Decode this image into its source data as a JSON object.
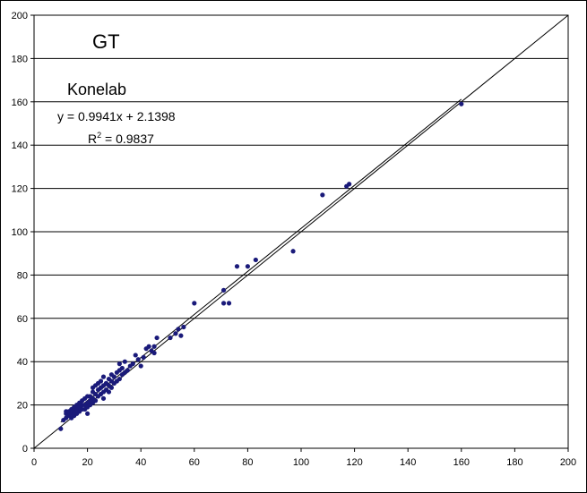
{
  "chart_data": {
    "type": "scatter",
    "title": "GT",
    "subtitle": "Konelab",
    "equation": "y = 0.9941x + 2.1398",
    "r2_label": "R",
    "r2_sup": "2",
    "r2_value": " = 0.9837",
    "xlim": [
      0,
      200
    ],
    "ylim": [
      0,
      200
    ],
    "x_ticks": [
      0,
      20,
      40,
      60,
      80,
      100,
      120,
      140,
      160,
      180,
      200
    ],
    "y_ticks": [
      0,
      20,
      40,
      60,
      80,
      100,
      120,
      140,
      160,
      180,
      200
    ],
    "grid": "horizontal",
    "marker_color": "#1a1a7a",
    "trendline": {
      "slope": 0.9941,
      "intercept": 2.1398,
      "x_range": [
        10,
        160
      ]
    },
    "identity_line": {
      "slope": 1,
      "intercept": 0
    },
    "points": [
      [
        10,
        9
      ],
      [
        11,
        13
      ],
      [
        12,
        14
      ],
      [
        12,
        16
      ],
      [
        12,
        17
      ],
      [
        13,
        15
      ],
      [
        13,
        17
      ],
      [
        14,
        14
      ],
      [
        14,
        16
      ],
      [
        14,
        18
      ],
      [
        15,
        15
      ],
      [
        15,
        17
      ],
      [
        15,
        19
      ],
      [
        16,
        16
      ],
      [
        16,
        18
      ],
      [
        16,
        20
      ],
      [
        17,
        17
      ],
      [
        17,
        19
      ],
      [
        17,
        21
      ],
      [
        18,
        18
      ],
      [
        18,
        20
      ],
      [
        18,
        22
      ],
      [
        19,
        18
      ],
      [
        19,
        20
      ],
      [
        19,
        23
      ],
      [
        20,
        16
      ],
      [
        20,
        19
      ],
      [
        20,
        21
      ],
      [
        20,
        24
      ],
      [
        21,
        20
      ],
      [
        21,
        22
      ],
      [
        21,
        24
      ],
      [
        22,
        21
      ],
      [
        22,
        23
      ],
      [
        22,
        26
      ],
      [
        22,
        28
      ],
      [
        23,
        22
      ],
      [
        23,
        25
      ],
      [
        23,
        29
      ],
      [
        24,
        24
      ],
      [
        24,
        27
      ],
      [
        24,
        30
      ],
      [
        25,
        25
      ],
      [
        25,
        28
      ],
      [
        25,
        31
      ],
      [
        26,
        23
      ],
      [
        26,
        26
      ],
      [
        26,
        29
      ],
      [
        26,
        33
      ],
      [
        27,
        27
      ],
      [
        27,
        30
      ],
      [
        28,
        26
      ],
      [
        28,
        29
      ],
      [
        28,
        32
      ],
      [
        29,
        28
      ],
      [
        29,
        31
      ],
      [
        29,
        34
      ],
      [
        30,
        30
      ],
      [
        30,
        33
      ],
      [
        31,
        31
      ],
      [
        31,
        35
      ],
      [
        32,
        32
      ],
      [
        32,
        36
      ],
      [
        32,
        39
      ],
      [
        33,
        34
      ],
      [
        33,
        37
      ],
      [
        34,
        35
      ],
      [
        34,
        40
      ],
      [
        35,
        36
      ],
      [
        36,
        38
      ],
      [
        37,
        39
      ],
      [
        38,
        43
      ],
      [
        39,
        41
      ],
      [
        40,
        38
      ],
      [
        41,
        42
      ],
      [
        42,
        46
      ],
      [
        43,
        47
      ],
      [
        44,
        45
      ],
      [
        45,
        44
      ],
      [
        45,
        47
      ],
      [
        46,
        51
      ],
      [
        51,
        51
      ],
      [
        53,
        53
      ],
      [
        54,
        55
      ],
      [
        55,
        52
      ],
      [
        56,
        56
      ],
      [
        60,
        67
      ],
      [
        71,
        73
      ],
      [
        71,
        67
      ],
      [
        73,
        67
      ],
      [
        76,
        84
      ],
      [
        80,
        84
      ],
      [
        83,
        87
      ],
      [
        97,
        91
      ],
      [
        108,
        117
      ],
      [
        117,
        121
      ],
      [
        118,
        122
      ],
      [
        160,
        159
      ]
    ]
  }
}
